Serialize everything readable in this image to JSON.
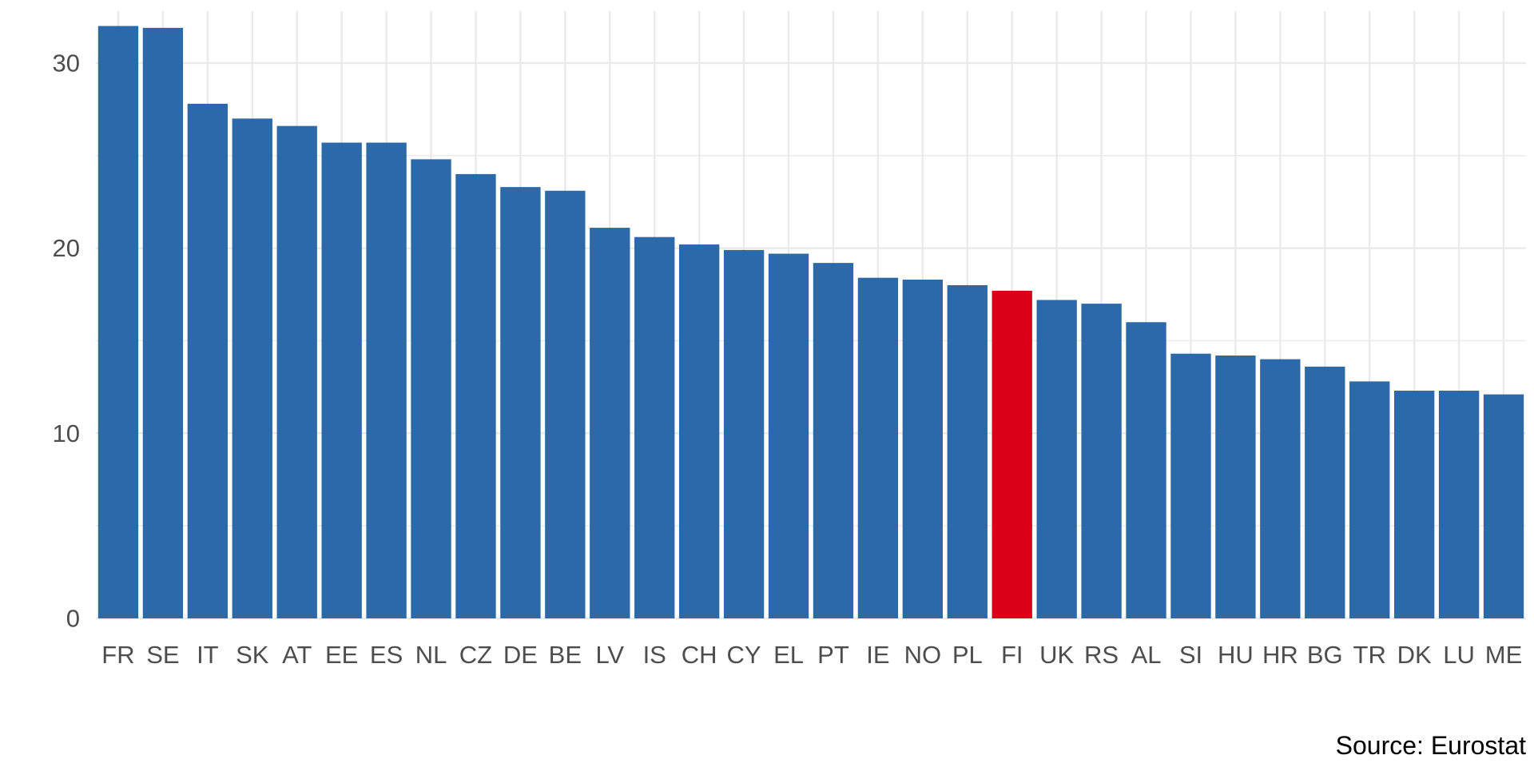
{
  "chart_data": {
    "type": "bar",
    "title": "",
    "xlabel": "",
    "ylabel": "",
    "categories": [
      "FR",
      "SE",
      "IT",
      "SK",
      "AT",
      "EE",
      "ES",
      "NL",
      "CZ",
      "DE",
      "BE",
      "LV",
      "IS",
      "CH",
      "CY",
      "EL",
      "PT",
      "IE",
      "NO",
      "PL",
      "FI",
      "UK",
      "RS",
      "AL",
      "SI",
      "HU",
      "HR",
      "BG",
      "TR",
      "DK",
      "LU",
      "ME"
    ],
    "values": [
      32.0,
      31.9,
      27.8,
      27.0,
      26.6,
      25.7,
      25.7,
      24.8,
      24.0,
      23.3,
      23.1,
      21.1,
      20.6,
      20.2,
      19.9,
      19.7,
      19.2,
      18.4,
      18.3,
      18.0,
      17.7,
      17.2,
      17.0,
      16.0,
      14.3,
      14.2,
      14.0,
      13.6,
      12.8,
      12.3,
      12.3,
      12.1
    ],
    "yticks": [
      0,
      10,
      20,
      30
    ],
    "ylim": [
      0,
      32.8
    ],
    "grid": true,
    "legend": "none",
    "highlight": "FI",
    "bar_color": "#2c69a8",
    "highlight_color": "#db0017",
    "grid_color": "#ebebeb",
    "caption": "Source: Eurostat"
  }
}
